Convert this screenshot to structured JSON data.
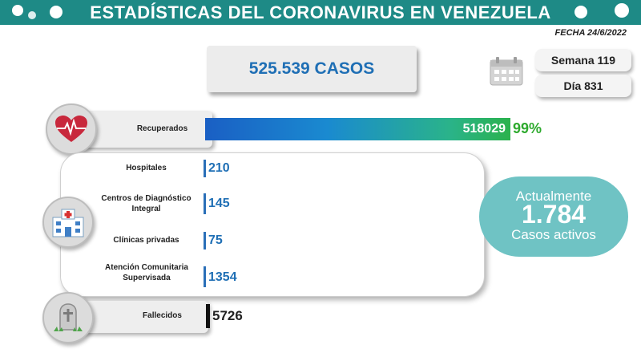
{
  "header": {
    "title": "ESTADÍSTICAS DEL CORONAVIRUS EN VENEZUELA",
    "color": "#1e8a86"
  },
  "date": "FECHA 24/6/2022",
  "total_cases": "525.539 CASOS",
  "week": "Semana 119",
  "day": "Día 831",
  "recovered": {
    "label": "Recuperados",
    "value": "518029",
    "percent": "99%",
    "fraction": 0.99
  },
  "hospitalization": [
    {
      "label": "Hospitales",
      "value": "210"
    },
    {
      "label": "Centros de Diagnóstico Integral",
      "value": "145"
    },
    {
      "label": "Clínicas privadas",
      "value": "75"
    },
    {
      "label": "Atención Comunitaria Supervisada",
      "value": "1354"
    }
  ],
  "active": {
    "top": "Actualmente",
    "number": "1.784",
    "bottom": "Casos activos"
  },
  "deceased": {
    "label": "Fallecidos",
    "value": "5726"
  },
  "icons": {
    "recovered": "heart-pulse-icon",
    "hospital": "hospital-icon",
    "deceased": "tombstone-icon",
    "calendar": "calendar-icon",
    "virus": "virus-icon"
  }
}
